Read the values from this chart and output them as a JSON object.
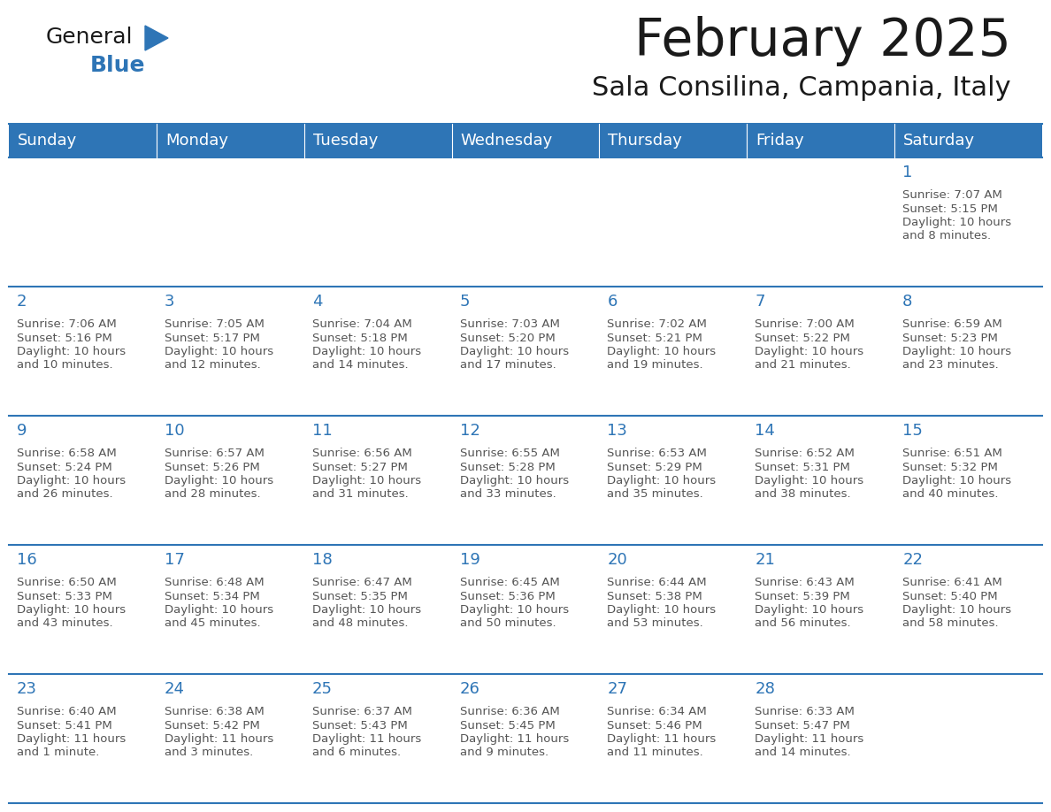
{
  "title": "February 2025",
  "subtitle": "Sala Consilina, Campania, Italy",
  "header_bg_color": "#2E75B6",
  "header_text_color": "#FFFFFF",
  "day_names": [
    "Sunday",
    "Monday",
    "Tuesday",
    "Wednesday",
    "Thursday",
    "Friday",
    "Saturday"
  ],
  "cell_text_color": "#555555",
  "day_num_color": "#2E75B6",
  "line_color": "#2E75B6",
  "bg_color": "#FFFFFF",
  "logo_general_color": "#1a1a1a",
  "logo_blue_color": "#2E75B6",
  "calendar": [
    [
      null,
      null,
      null,
      null,
      null,
      null,
      {
        "day": "1",
        "sunrise": "7:07 AM",
        "sunset": "5:15 PM",
        "daylight": "10 hours\nand 8 minutes."
      }
    ],
    [
      {
        "day": "2",
        "sunrise": "7:06 AM",
        "sunset": "5:16 PM",
        "daylight": "10 hours\nand 10 minutes."
      },
      {
        "day": "3",
        "sunrise": "7:05 AM",
        "sunset": "5:17 PM",
        "daylight": "10 hours\nand 12 minutes."
      },
      {
        "day": "4",
        "sunrise": "7:04 AM",
        "sunset": "5:18 PM",
        "daylight": "10 hours\nand 14 minutes."
      },
      {
        "day": "5",
        "sunrise": "7:03 AM",
        "sunset": "5:20 PM",
        "daylight": "10 hours\nand 17 minutes."
      },
      {
        "day": "6",
        "sunrise": "7:02 AM",
        "sunset": "5:21 PM",
        "daylight": "10 hours\nand 19 minutes."
      },
      {
        "day": "7",
        "sunrise": "7:00 AM",
        "sunset": "5:22 PM",
        "daylight": "10 hours\nand 21 minutes."
      },
      {
        "day": "8",
        "sunrise": "6:59 AM",
        "sunset": "5:23 PM",
        "daylight": "10 hours\nand 23 minutes."
      }
    ],
    [
      {
        "day": "9",
        "sunrise": "6:58 AM",
        "sunset": "5:24 PM",
        "daylight": "10 hours\nand 26 minutes."
      },
      {
        "day": "10",
        "sunrise": "6:57 AM",
        "sunset": "5:26 PM",
        "daylight": "10 hours\nand 28 minutes."
      },
      {
        "day": "11",
        "sunrise": "6:56 AM",
        "sunset": "5:27 PM",
        "daylight": "10 hours\nand 31 minutes."
      },
      {
        "day": "12",
        "sunrise": "6:55 AM",
        "sunset": "5:28 PM",
        "daylight": "10 hours\nand 33 minutes."
      },
      {
        "day": "13",
        "sunrise": "6:53 AM",
        "sunset": "5:29 PM",
        "daylight": "10 hours\nand 35 minutes."
      },
      {
        "day": "14",
        "sunrise": "6:52 AM",
        "sunset": "5:31 PM",
        "daylight": "10 hours\nand 38 minutes."
      },
      {
        "day": "15",
        "sunrise": "6:51 AM",
        "sunset": "5:32 PM",
        "daylight": "10 hours\nand 40 minutes."
      }
    ],
    [
      {
        "day": "16",
        "sunrise": "6:50 AM",
        "sunset": "5:33 PM",
        "daylight": "10 hours\nand 43 minutes."
      },
      {
        "day": "17",
        "sunrise": "6:48 AM",
        "sunset": "5:34 PM",
        "daylight": "10 hours\nand 45 minutes."
      },
      {
        "day": "18",
        "sunrise": "6:47 AM",
        "sunset": "5:35 PM",
        "daylight": "10 hours\nand 48 minutes."
      },
      {
        "day": "19",
        "sunrise": "6:45 AM",
        "sunset": "5:36 PM",
        "daylight": "10 hours\nand 50 minutes."
      },
      {
        "day": "20",
        "sunrise": "6:44 AM",
        "sunset": "5:38 PM",
        "daylight": "10 hours\nand 53 minutes."
      },
      {
        "day": "21",
        "sunrise": "6:43 AM",
        "sunset": "5:39 PM",
        "daylight": "10 hours\nand 56 minutes."
      },
      {
        "day": "22",
        "sunrise": "6:41 AM",
        "sunset": "5:40 PM",
        "daylight": "10 hours\nand 58 minutes."
      }
    ],
    [
      {
        "day": "23",
        "sunrise": "6:40 AM",
        "sunset": "5:41 PM",
        "daylight": "11 hours\nand 1 minute."
      },
      {
        "day": "24",
        "sunrise": "6:38 AM",
        "sunset": "5:42 PM",
        "daylight": "11 hours\nand 3 minutes."
      },
      {
        "day": "25",
        "sunrise": "6:37 AM",
        "sunset": "5:43 PM",
        "daylight": "11 hours\nand 6 minutes."
      },
      {
        "day": "26",
        "sunrise": "6:36 AM",
        "sunset": "5:45 PM",
        "daylight": "11 hours\nand 9 minutes."
      },
      {
        "day": "27",
        "sunrise": "6:34 AM",
        "sunset": "5:46 PM",
        "daylight": "11 hours\nand 11 minutes."
      },
      {
        "day": "28",
        "sunrise": "6:33 AM",
        "sunset": "5:47 PM",
        "daylight": "11 hours\nand 14 minutes."
      },
      null
    ]
  ]
}
